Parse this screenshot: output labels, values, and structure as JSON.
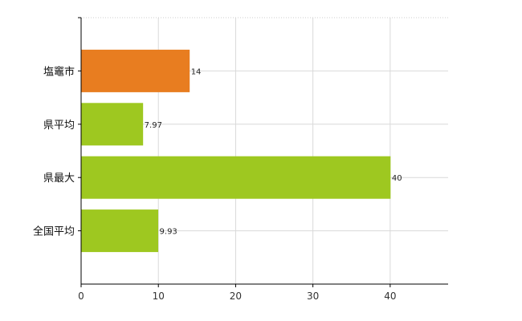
{
  "chart_data": {
    "type": "bar",
    "orientation": "horizontal",
    "categories": [
      "塩竈市",
      "県平均",
      "県最大",
      "全国平均"
    ],
    "values": [
      14,
      7.97,
      40,
      9.93
    ],
    "data_labels": [
      "14",
      "7.97",
      "40",
      "9.93"
    ],
    "bar_colors": [
      "#e87d20",
      "#9ec820",
      "#9ec820",
      "#9ec820"
    ],
    "xlim": [
      0,
      47.5
    ],
    "xticks": [
      0,
      10,
      20,
      30,
      40
    ],
    "title": "",
    "xlabel": "",
    "ylabel": "",
    "grid": true,
    "grid_color": "#d9d9d9"
  }
}
